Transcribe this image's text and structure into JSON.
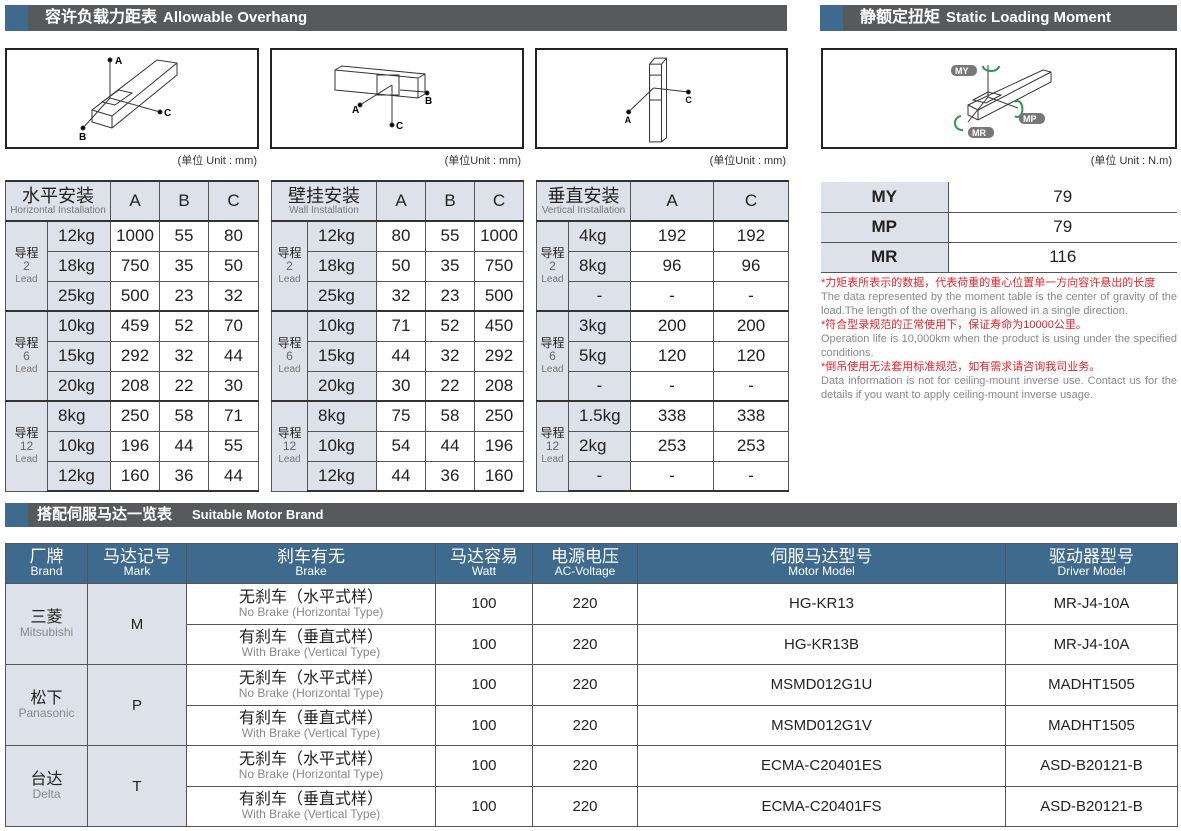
{
  "sections": {
    "overhang": {
      "title_cn": "容许负载力距表",
      "title_en": "Allowable Overhang"
    },
    "static": {
      "title_cn": "静额定扭矩",
      "title_en": "Static Loading Moment"
    },
    "motor": {
      "title_cn": "搭配伺服马达一览表",
      "title_en": "Suitable Motor Brand"
    }
  },
  "diagram_labels": {
    "a": "A",
    "b": "B",
    "c": "C",
    "my": "MY",
    "mp": "MP",
    "mr": "MR"
  },
  "units": {
    "mm1": "(单位 Unit : mm)",
    "mm2": "(单位Unit : mm)",
    "mm3": "(单位Unit : mm)",
    "nm": "(单位 Unit : N.m)"
  },
  "lead_label": {
    "cn": "导程",
    "en": "Lead"
  },
  "overhang_tables": [
    {
      "title_cn": "水平安装",
      "title_en": "Horizontal Installation",
      "cols": [
        "A",
        "B",
        "C"
      ],
      "groups": [
        {
          "lead": "2",
          "rows": [
            [
              "12kg",
              "1000",
              "55",
              "80"
            ],
            [
              "18kg",
              "750",
              "35",
              "50"
            ],
            [
              "25kg",
              "500",
              "23",
              "32"
            ]
          ]
        },
        {
          "lead": "6",
          "rows": [
            [
              "10kg",
              "459",
              "52",
              "70"
            ],
            [
              "15kg",
              "292",
              "32",
              "44"
            ],
            [
              "20kg",
              "208",
              "22",
              "30"
            ]
          ]
        },
        {
          "lead": "12",
          "rows": [
            [
              "8kg",
              "250",
              "58",
              "71"
            ],
            [
              "10kg",
              "196",
              "44",
              "55"
            ],
            [
              "12kg",
              "160",
              "36",
              "44"
            ]
          ]
        }
      ]
    },
    {
      "title_cn": "壁挂安装",
      "title_en": "Wall Installation",
      "cols": [
        "A",
        "B",
        "C"
      ],
      "groups": [
        {
          "lead": "2",
          "rows": [
            [
              "12kg",
              "80",
              "55",
              "1000"
            ],
            [
              "18kg",
              "50",
              "35",
              "750"
            ],
            [
              "25kg",
              "32",
              "23",
              "500"
            ]
          ]
        },
        {
          "lead": "6",
          "rows": [
            [
              "10kg",
              "71",
              "52",
              "450"
            ],
            [
              "15kg",
              "44",
              "32",
              "292"
            ],
            [
              "20kg",
              "30",
              "22",
              "208"
            ]
          ]
        },
        {
          "lead": "12",
          "rows": [
            [
              "8kg",
              "75",
              "58",
              "250"
            ],
            [
              "10kg",
              "54",
              "44",
              "196"
            ],
            [
              "12kg",
              "44",
              "36",
              "160"
            ]
          ]
        }
      ]
    },
    {
      "title_cn": "垂直安装",
      "title_en": "Vertical Installation",
      "cols": [
        "A",
        "C"
      ],
      "groups": [
        {
          "lead": "2",
          "rows": [
            [
              "4kg",
              "192",
              "192"
            ],
            [
              "8kg",
              "96",
              "96"
            ],
            [
              "-",
              "-",
              "-"
            ]
          ]
        },
        {
          "lead": "6",
          "rows": [
            [
              "3kg",
              "200",
              "200"
            ],
            [
              "5kg",
              "120",
              "120"
            ],
            [
              "-",
              "-",
              "-"
            ]
          ]
        },
        {
          "lead": "12",
          "rows": [
            [
              "1.5kg",
              "338",
              "338"
            ],
            [
              "2kg",
              "253",
              "253"
            ],
            [
              "-",
              "-",
              "-"
            ]
          ]
        }
      ]
    }
  ],
  "static_moment": [
    [
      "MY",
      "79"
    ],
    [
      "MP",
      "79"
    ],
    [
      "MR",
      "116"
    ]
  ],
  "notes": [
    {
      "cn": "*力矩表所表示的数据，代表荷重的重心位置单一方向容许悬出的长度",
      "en": "The data represented by the moment table is the center of gravity of the load.The length of the overhang is allowed in a single direction."
    },
    {
      "cn": "*符合型录规范的正常使用下，保证寿命为10000公里。",
      "en": "Operation life is 10,000km when the product is using under the specified conditions."
    },
    {
      "cn": "*倒吊使用无法套用标准规范，如有需求请咨询我司业务。",
      "en": "Data information is not for ceiling-mount inverse use. Contact us for the details if you want to apply ceiling-mount inverse usage."
    }
  ],
  "motor_table": {
    "headers": [
      [
        "厂牌",
        "Brand"
      ],
      [
        "马达记号",
        "Mark"
      ],
      [
        "刹车有无",
        "Brake"
      ],
      [
        "马达容易",
        "Watt"
      ],
      [
        "电源电压",
        "AC-Voltage"
      ],
      [
        "伺服马达型号",
        "Motor Model"
      ],
      [
        "驱动器型号",
        "Driver Model"
      ]
    ],
    "brands": [
      {
        "cn": "三菱",
        "en": "Mitsubishi",
        "mark": "M",
        "rows": [
          {
            "brake_cn": "无刹车（水平式样）",
            "brake_en": "No Brake (Horizontal Type)",
            "watt": "100",
            "voltage": "220",
            "motor": "HG-KR13",
            "driver": "MR-J4-10A"
          },
          {
            "brake_cn": "有刹车（垂直式样）",
            "brake_en": "With Brake (Vertical Type)",
            "watt": "100",
            "voltage": "220",
            "motor": "HG-KR13B",
            "driver": "MR-J4-10A"
          }
        ]
      },
      {
        "cn": "松下",
        "en": "Panasonic",
        "mark": "P",
        "rows": [
          {
            "brake_cn": "无刹车（水平式样）",
            "brake_en": "No Brake (Horizontal Type)",
            "watt": "100",
            "voltage": "220",
            "motor": "MSMD012G1U",
            "driver": "MADHT1505"
          },
          {
            "brake_cn": "有刹车（垂直式样）",
            "brake_en": "With Brake (Vertical Type)",
            "watt": "100",
            "voltage": "220",
            "motor": "MSMD012G1V",
            "driver": "MADHT1505"
          }
        ]
      },
      {
        "cn": "台达",
        "en": "Delta",
        "mark": "T",
        "rows": [
          {
            "brake_cn": "无刹车（水平式样）",
            "brake_en": "No Brake (Horizontal Type)",
            "watt": "100",
            "voltage": "220",
            "motor": "ECMA-C20401ES",
            "driver": "ASD-B20121-B"
          },
          {
            "brake_cn": "有刹车（垂直式样）",
            "brake_en": "With Brake (Vertical Type)",
            "watt": "100",
            "voltage": "220",
            "motor": "ECMA-C20401FS",
            "driver": "ASD-B20121-B"
          }
        ]
      }
    ]
  },
  "colors": {
    "bar": "#58595b",
    "accent": "#3e6a8e",
    "header_cell": "#dde1e9",
    "note_red": "#e8232a",
    "moment_arrow": "#2a9a4a"
  }
}
